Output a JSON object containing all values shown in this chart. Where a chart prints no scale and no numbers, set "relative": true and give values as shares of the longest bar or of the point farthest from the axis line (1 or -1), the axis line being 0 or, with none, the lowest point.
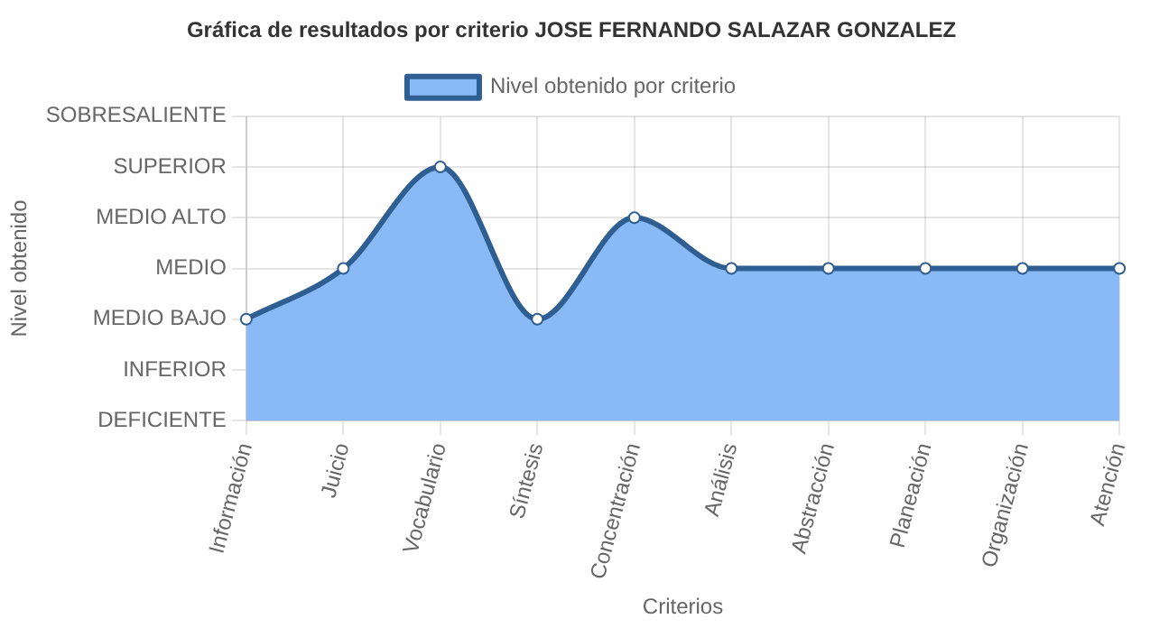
{
  "chart_data": {
    "type": "area",
    "relative": true,
    "title": "Gráfica de resultados por criterio JOSE FERNANDO SALAZAR GONZALEZ",
    "xlabel": "Criterios",
    "categories": [
      "Información",
      "Juicio",
      "Vocabulario",
      "Síntesis",
      "Concentración",
      "Análisis",
      "Abstracción",
      "Planeación",
      "Organización",
      "Atención"
    ],
    "series": [
      {
        "name": "Nivel obtenido por criterio",
        "color": "#89baf5",
        "values": [
          0.4,
          0.6,
          1,
          0.4,
          0.8,
          0.6,
          0.6,
          0.6,
          0.6,
          0.6
        ]
      }
    ],
    "annotations": [
      "DEFICIENTE",
      "INFERIOR",
      "MEDIO BAJO",
      "MEDIO",
      "MEDIO ALTO",
      "SUPERIOR",
      "SOBRESALIENTE",
      "Nivel obtenido"
    ],
    "grid": true,
    "legend": "top",
    "marker": "circle",
    "line_style": "solid"
  }
}
